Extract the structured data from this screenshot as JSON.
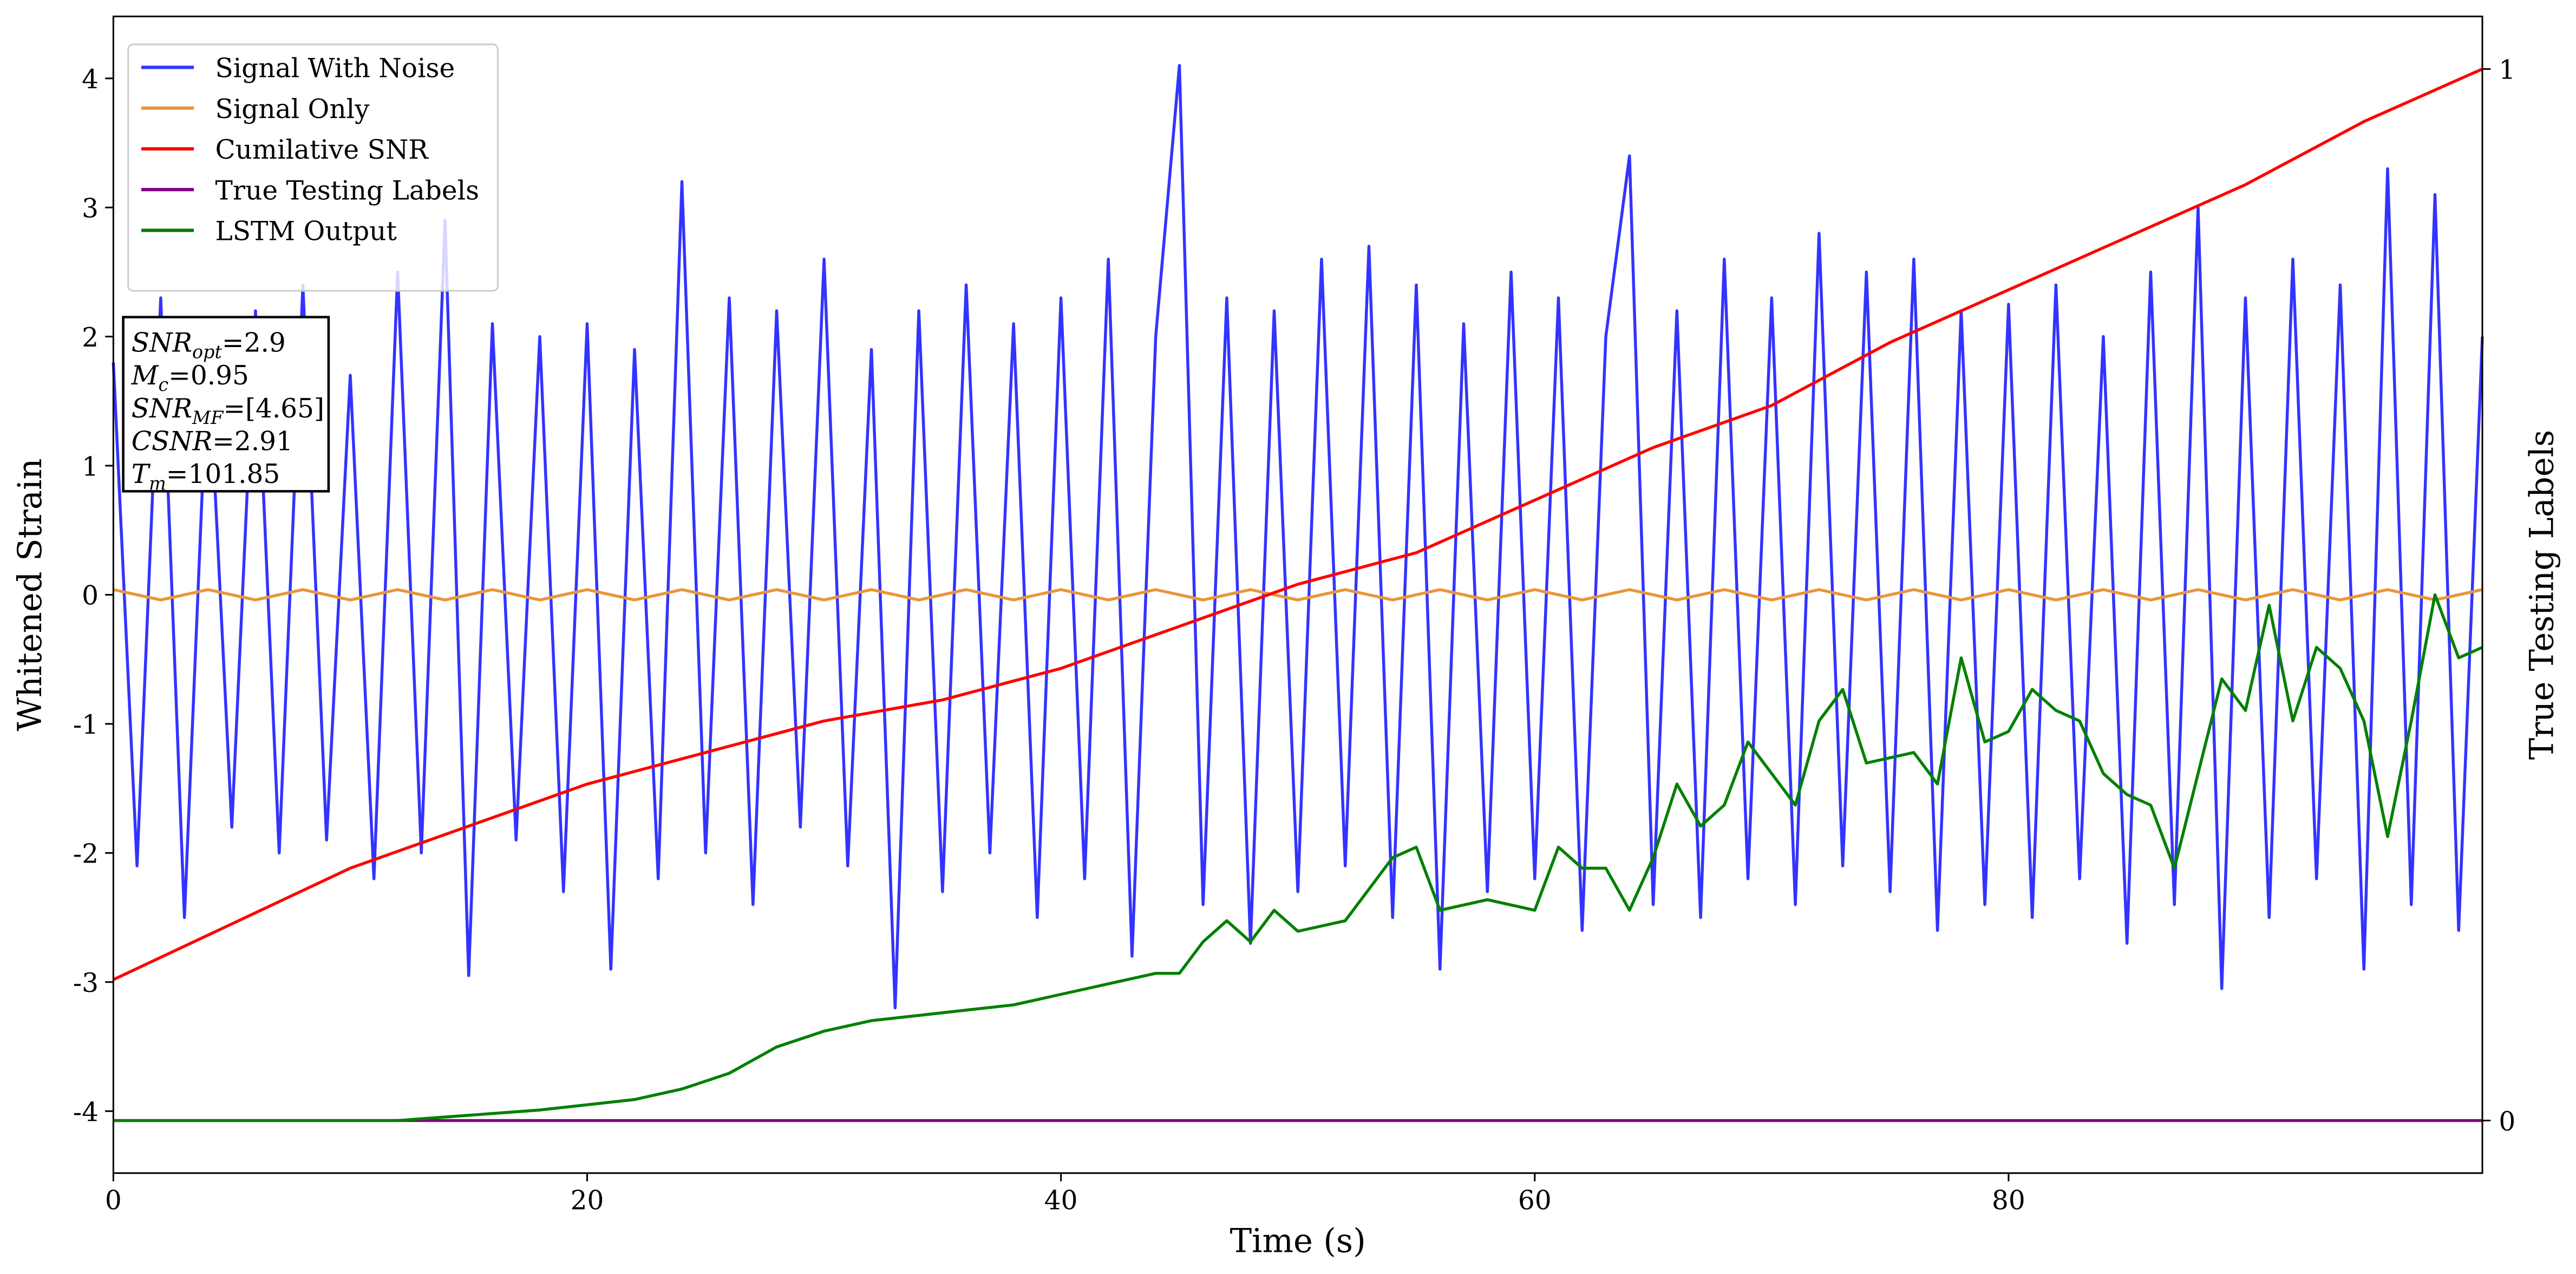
{
  "chart_data": {
    "type": "line",
    "xlabel": "Time (s)",
    "ylabel": "Whitened Strain",
    "y2label": "True Testing Labels",
    "xlim": [
      0,
      100
    ],
    "xticks": [
      0,
      20,
      40,
      60,
      80
    ],
    "ylim": [
      -4.48,
      4.48
    ],
    "yticks": [
      -4,
      -3,
      -2,
      -1,
      0,
      1,
      2,
      3,
      4
    ],
    "y2lim": [
      -0.05,
      1.05
    ],
    "y2ticks": [
      0,
      1
    ],
    "grid": false,
    "legend": "upper left",
    "series": [
      {
        "name": "Signal With Noise",
        "color": "#3333ff",
        "x": [
          0,
          1,
          2,
          3,
          4,
          5,
          6,
          7,
          8,
          9,
          10,
          11,
          12,
          13,
          14,
          15,
          16,
          17,
          18,
          19,
          20,
          21,
          22,
          23,
          24,
          25,
          26,
          27,
          28,
          29,
          30,
          31,
          32,
          33,
          34,
          35,
          36,
          37,
          38,
          39,
          40,
          41,
          42,
          43,
          44,
          45,
          46,
          47,
          48,
          49,
          50,
          51,
          52,
          53,
          54,
          55,
          56,
          57,
          58,
          59,
          60,
          61,
          62,
          63,
          64,
          65,
          66,
          67,
          68,
          69,
          70,
          71,
          72,
          73,
          74,
          75,
          76,
          77,
          78,
          79,
          80,
          81,
          82,
          83,
          84,
          85,
          86,
          87,
          88,
          89,
          90,
          91,
          92,
          93,
          94,
          95,
          96,
          97,
          98,
          99,
          100
        ],
        "values": [
          1.8,
          -2.1,
          2.3,
          -2.5,
          1.9,
          -1.8,
          2.2,
          -2.0,
          2.4,
          -1.9,
          1.7,
          -2.2,
          2.5,
          -2.0,
          2.9,
          -2.95,
          2.1,
          -1.9,
          2.0,
          -2.3,
          2.1,
          -2.9,
          1.9,
          -2.2,
          3.2,
          -2.0,
          2.3,
          -2.4,
          2.2,
          -1.8,
          2.6,
          -2.1,
          1.9,
          -3.2,
          2.2,
          -2.3,
          2.4,
          -2.0,
          2.1,
          -2.5,
          2.3,
          -2.2,
          2.6,
          -2.8,
          2.0,
          4.1,
          -2.4,
          2.3,
          -2.7,
          2.2,
          -2.3,
          2.6,
          -2.1,
          2.7,
          -2.5,
          2.4,
          -2.9,
          2.1,
          -2.3,
          2.5,
          -2.2,
          2.3,
          -2.6,
          2.0,
          3.4,
          -2.4,
          2.2,
          -2.5,
          2.6,
          -2.2,
          2.3,
          -2.4,
          2.8,
          -2.1,
          2.5,
          -2.3,
          2.6,
          -2.6,
          2.2,
          -2.4,
          2.25,
          -2.5,
          2.4,
          -2.2,
          2.0,
          -2.7,
          2.5,
          -2.4,
          3.0,
          -3.05,
          2.3,
          -2.5,
          2.6,
          -2.2,
          2.4,
          -2.9,
          3.3,
          -2.4,
          3.1,
          -2.6,
          2.0
        ]
      },
      {
        "name": "Signal Only",
        "color": "#e8963a",
        "x": [
          0,
          2,
          4,
          6,
          8,
          10,
          12,
          14,
          16,
          18,
          20,
          22,
          24,
          26,
          28,
          30,
          32,
          34,
          36,
          38,
          40,
          42,
          44,
          46,
          48,
          50,
          52,
          54,
          56,
          58,
          60,
          62,
          64,
          66,
          68,
          70,
          72,
          74,
          76,
          78,
          80,
          82,
          84,
          86,
          88,
          90,
          92,
          94,
          96,
          98,
          100
        ],
        "values": [
          0.04,
          -0.04,
          0.04,
          -0.04,
          0.04,
          -0.04,
          0.04,
          -0.04,
          0.04,
          -0.04,
          0.04,
          -0.04,
          0.04,
          -0.04,
          0.04,
          -0.04,
          0.04,
          -0.04,
          0.04,
          -0.04,
          0.04,
          -0.04,
          0.04,
          -0.04,
          0.04,
          -0.04,
          0.04,
          -0.04,
          0.04,
          -0.04,
          0.04,
          -0.04,
          0.04,
          -0.04,
          0.04,
          -0.04,
          0.04,
          -0.04,
          0.04,
          -0.04,
          0.04,
          -0.04,
          0.04,
          -0.04,
          0.04,
          -0.04,
          0.04,
          -0.04,
          0.04,
          -0.04,
          0.04
        ]
      },
      {
        "name": "Cumilative SNR",
        "color": "#ff0000",
        "axis": "y2",
        "x": [
          0,
          10,
          20,
          30,
          35,
          40,
          45,
          50,
          55,
          60,
          65,
          70,
          75,
          80,
          85,
          90,
          95,
          100
        ],
        "values": [
          0.134,
          0.24,
          0.32,
          0.38,
          0.4,
          0.43,
          0.47,
          0.51,
          0.54,
          0.59,
          0.64,
          0.68,
          0.74,
          0.79,
          0.84,
          0.89,
          0.95,
          1.0
        ]
      },
      {
        "name": "True Testing Labels",
        "color": "#800080",
        "axis": "y2",
        "x": [
          0,
          100
        ],
        "values": [
          0,
          0
        ]
      },
      {
        "name": "LSTM Output",
        "color": "#008000",
        "axis": "y2",
        "x": [
          0,
          5,
          10,
          12,
          15,
          18,
          20,
          22,
          24,
          26,
          28,
          30,
          32,
          34,
          36,
          38,
          40,
          42,
          44,
          45,
          46,
          47,
          48,
          49,
          50,
          52,
          54,
          55,
          56,
          58,
          60,
          61,
          62,
          63,
          64,
          65,
          66,
          67,
          68,
          69,
          70,
          71,
          72,
          73,
          74,
          76,
          77,
          78,
          79,
          80,
          81,
          82,
          83,
          84,
          85,
          86,
          87,
          88,
          89,
          90,
          91,
          92,
          93,
          94,
          95,
          96,
          97,
          98,
          99,
          100
        ],
        "values": [
          0,
          0,
          0,
          0,
          0.005,
          0.01,
          0.015,
          0.02,
          0.03,
          0.045,
          0.07,
          0.085,
          0.095,
          0.1,
          0.105,
          0.11,
          0.12,
          0.13,
          0.14,
          0.14,
          0.17,
          0.19,
          0.17,
          0.2,
          0.18,
          0.19,
          0.25,
          0.26,
          0.2,
          0.21,
          0.2,
          0.26,
          0.24,
          0.24,
          0.2,
          0.25,
          0.32,
          0.28,
          0.3,
          0.36,
          0.33,
          0.3,
          0.38,
          0.41,
          0.34,
          0.35,
          0.32,
          0.44,
          0.36,
          0.37,
          0.41,
          0.39,
          0.38,
          0.33,
          0.31,
          0.3,
          0.24,
          0.33,
          0.42,
          0.39,
          0.49,
          0.38,
          0.45,
          0.43,
          0.38,
          0.27,
          0.38,
          0.5,
          0.44,
          0.45
        ]
      }
    ],
    "annotations": [
      {
        "symbol": "SNR",
        "subscript": "opt",
        "text": "=2.9"
      },
      {
        "symbol": "M",
        "subscript": "c",
        "text": "=0.95"
      },
      {
        "symbol": "SNR",
        "subscript": "MF",
        "text": "=[4.65]"
      },
      {
        "symbol": "CSNR",
        "text": "=2.91"
      },
      {
        "symbol": "T",
        "subscript": "m",
        "text": "=101.85"
      }
    ]
  }
}
